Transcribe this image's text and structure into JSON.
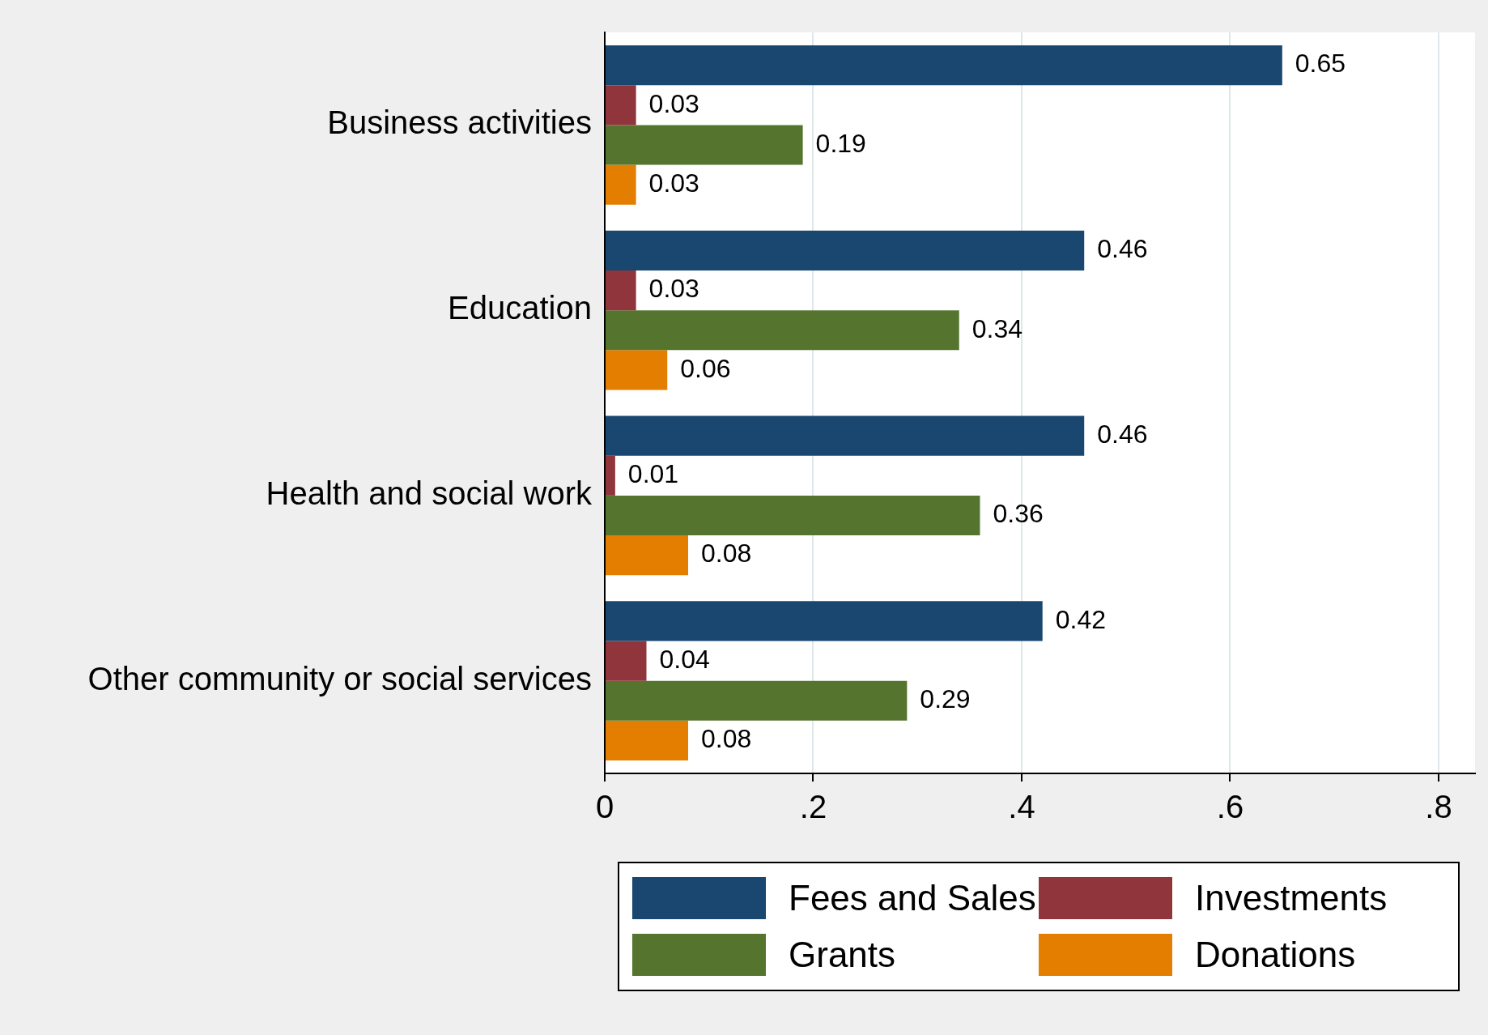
{
  "chart_data": {
    "type": "bar",
    "orientation": "horizontal",
    "categories": [
      "Business activities",
      "Education",
      "Health and social work",
      "Other community or social services"
    ],
    "series": [
      {
        "name": "Fees and Sales",
        "color": "#1a476f",
        "values": [
          0.65,
          0.46,
          0.46,
          0.42
        ]
      },
      {
        "name": "Investments",
        "color": "#90353b",
        "values": [
          0.03,
          0.03,
          0.01,
          0.04
        ]
      },
      {
        "name": "Grants",
        "color": "#55752f",
        "values": [
          0.19,
          0.34,
          0.36,
          0.29
        ]
      },
      {
        "name": "Donations",
        "color": "#e37e00",
        "values": [
          0.03,
          0.06,
          0.08,
          0.08
        ]
      }
    ],
    "xlim": [
      0,
      0.835
    ],
    "xticks": [
      0,
      {
        "value": 0.2,
        "label": ".2"
      },
      {
        "value": 0.4,
        "label": ".4"
      },
      {
        "value": 0.6,
        "label": ".6"
      },
      {
        "value": 0.8,
        "label": ".8"
      }
    ],
    "grid": "x",
    "data_labels": true,
    "legend": "bottom"
  }
}
